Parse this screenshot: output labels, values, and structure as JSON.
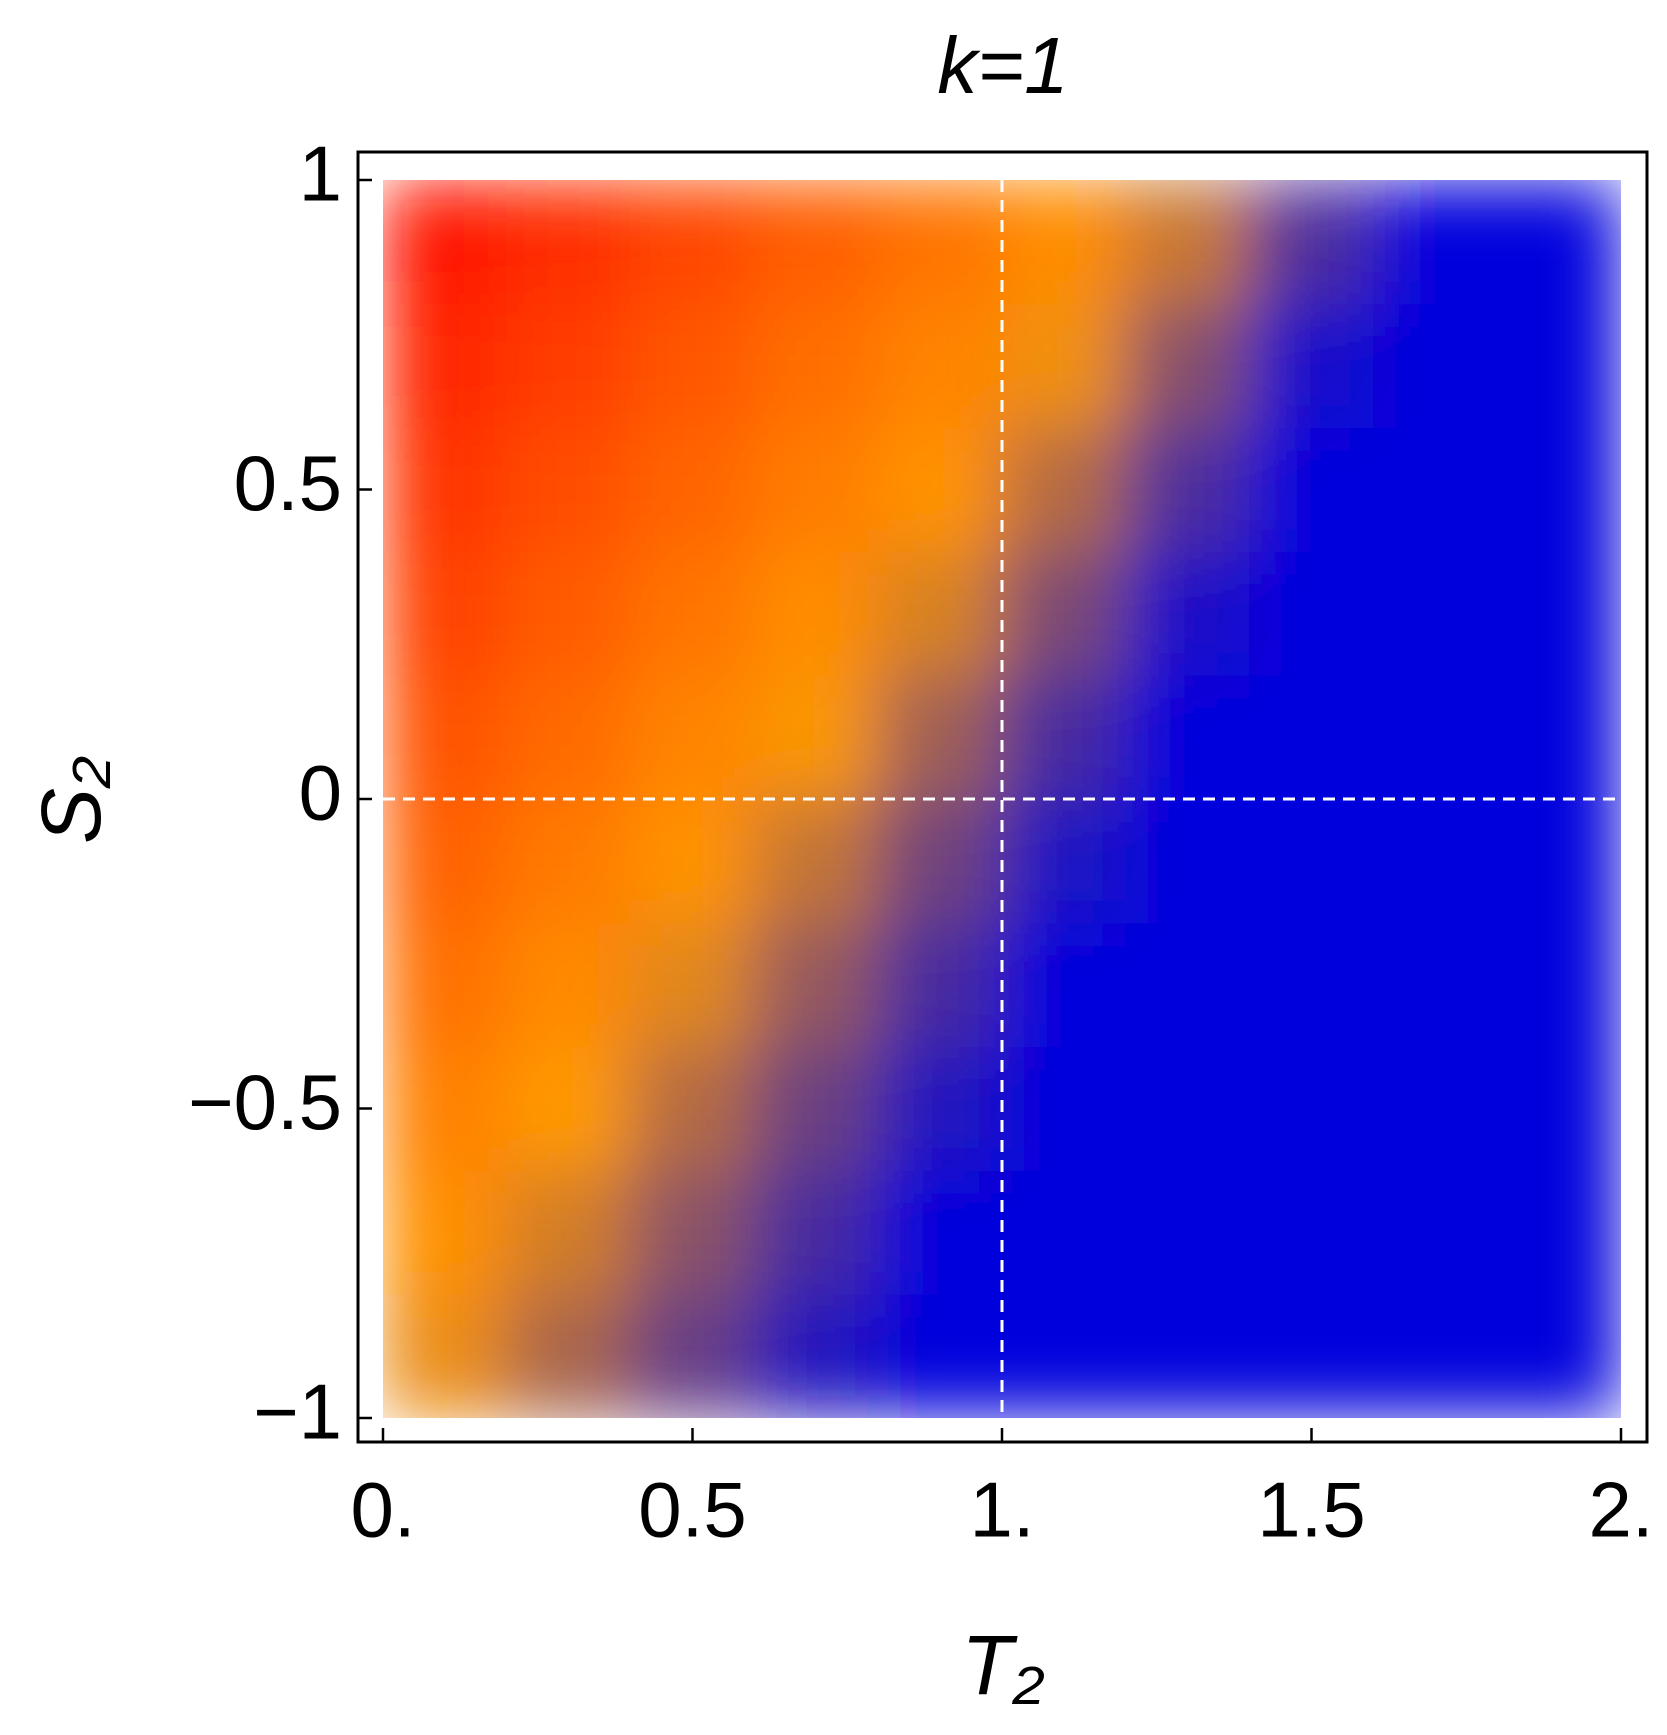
{
  "chart_data": {
    "type": "heatmap",
    "title": "k=1",
    "x_label": "T₂",
    "y_label": "S₂",
    "xlim": [
      0,
      2
    ],
    "ylim": [
      -1,
      1
    ],
    "xticks": [
      {
        "value": 0,
        "label": "0."
      },
      0.5,
      {
        "value": 1,
        "label": "1."
      },
      1.5,
      {
        "value": 2,
        "label": "2."
      }
    ],
    "yticks": [
      {
        "value": -1,
        "label": "−1"
      },
      {
        "value": -0.5,
        "label": "−0.5"
      },
      0,
      0.5,
      1
    ],
    "vlines": [
      1
    ],
    "hlines": [
      0
    ],
    "reference_line_color": "#ffffff",
    "colorscale": [
      [
        0,
        "#0000dd"
      ],
      [
        0.5,
        "#ff9900"
      ],
      [
        1,
        "#ff0000"
      ]
    ],
    "x": [
      0.1,
      0.3,
      0.5,
      0.7,
      0.9,
      1.1,
      1.3,
      1.5,
      1.7,
      1.9
    ],
    "y": [
      -0.9,
      -0.7,
      -0.5,
      -0.3,
      -0.1,
      0.1,
      0.3,
      0.5,
      0.7,
      0.9
    ],
    "z": [
      [
        0.46,
        0.33,
        0.2,
        0.07,
        0,
        0,
        0,
        0,
        0,
        0
      ],
      [
        0.53,
        0.41,
        0.27,
        0.14,
        0,
        0,
        0,
        0,
        0,
        0
      ],
      [
        0.58,
        0.5,
        0.35,
        0.21,
        0.07,
        0,
        0,
        0,
        0,
        0
      ],
      [
        0.63,
        0.55,
        0.44,
        0.29,
        0.14,
        0,
        0,
        0,
        0,
        0
      ],
      [
        0.68,
        0.6,
        0.52,
        0.38,
        0.22,
        0.06,
        0,
        0,
        0,
        0
      ],
      [
        0.73,
        0.65,
        0.57,
        0.49,
        0.31,
        0.14,
        0,
        0,
        0,
        0
      ],
      [
        0.78,
        0.7,
        0.62,
        0.54,
        0.42,
        0.24,
        0.05,
        0,
        0,
        0
      ],
      [
        0.83,
        0.75,
        0.67,
        0.59,
        0.52,
        0.35,
        0.15,
        0,
        0,
        0
      ],
      [
        0.88,
        0.8,
        0.72,
        0.64,
        0.57,
        0.47,
        0.26,
        0.04,
        0,
        0
      ],
      [
        0.93,
        0.85,
        0.77,
        0.69,
        0.62,
        0.54,
        0.39,
        0.15,
        0,
        0
      ]
    ]
  }
}
